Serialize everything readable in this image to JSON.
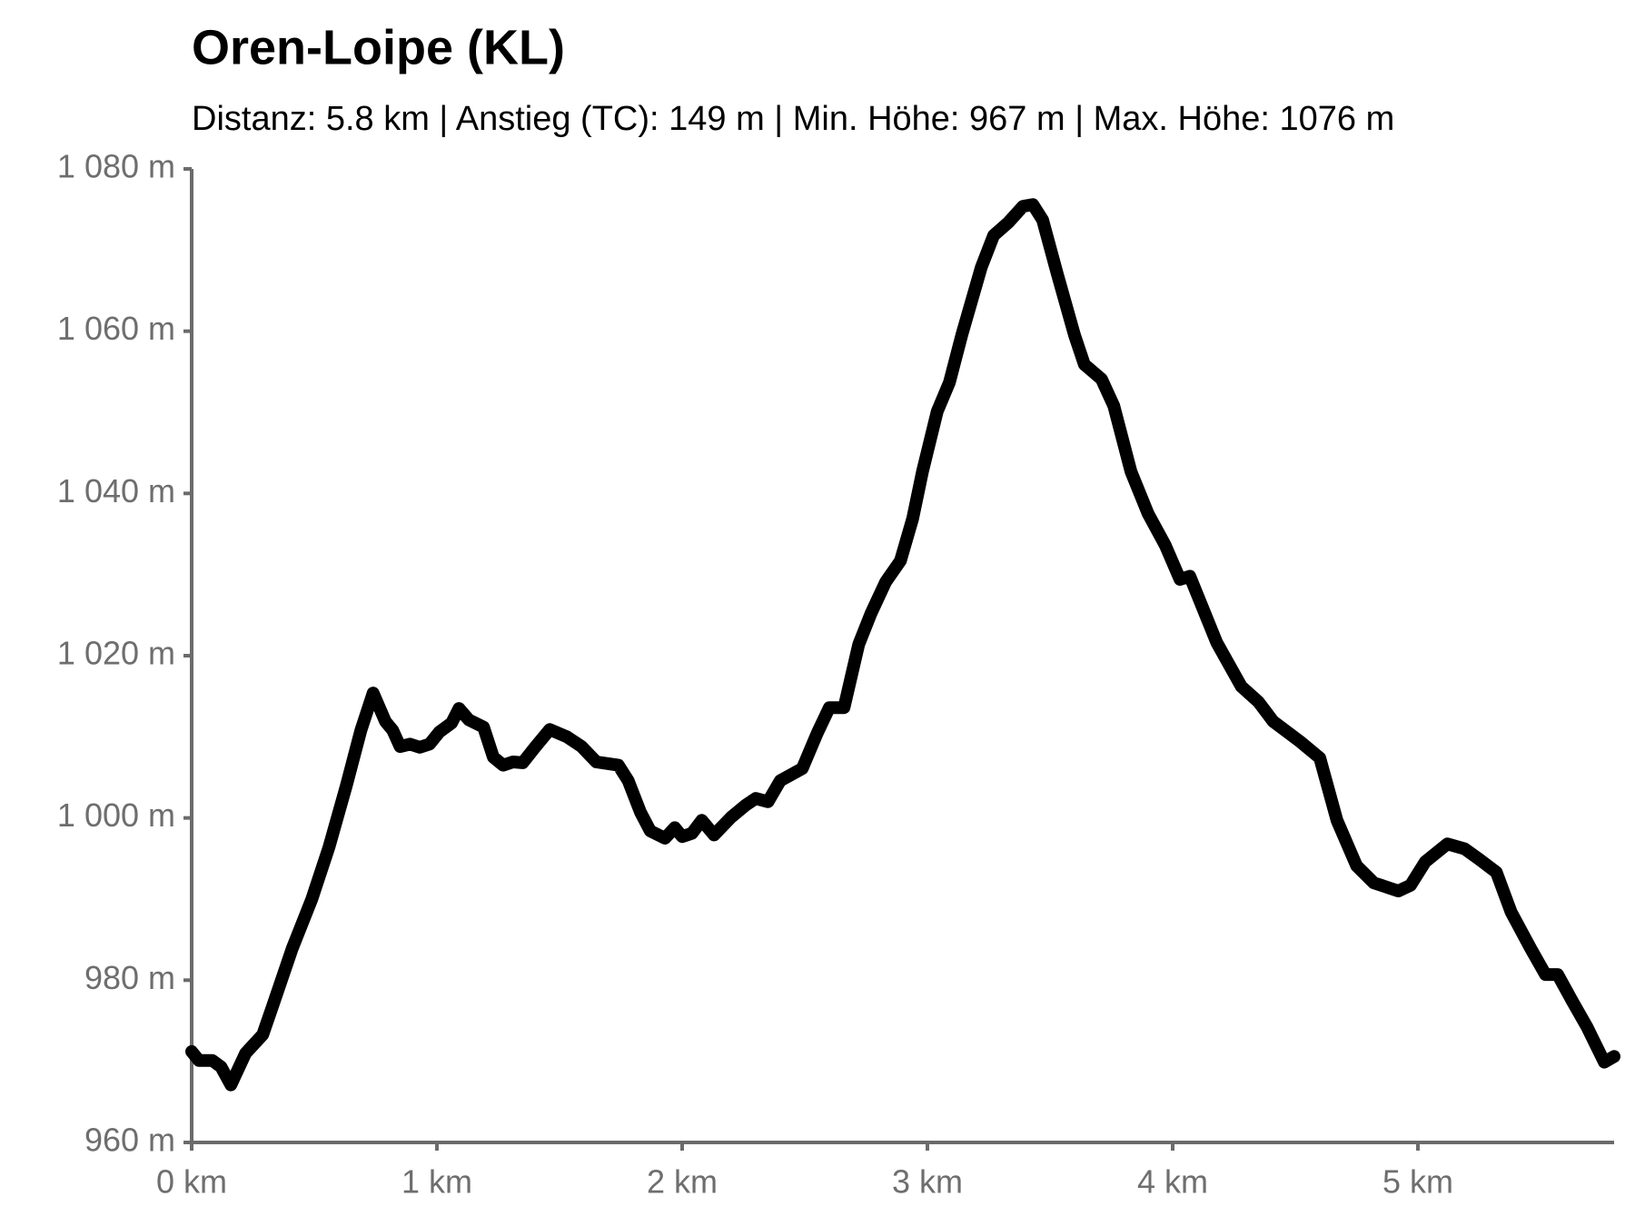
{
  "chart_data": {
    "type": "line",
    "title": "Oren-Loipe (KL)",
    "subtitle": "Distanz: 5.8 km | Anstieg (TC): 149 m | Min. Höhe: 967 m | Max. Höhe: 1076 m",
    "x": [
      0,
      0.03,
      0.085,
      0.12,
      0.16,
      0.22,
      0.29,
      0.33,
      0.41,
      0.49,
      0.56,
      0.63,
      0.69,
      0.74,
      0.79,
      0.82,
      0.85,
      0.89,
      0.93,
      0.97,
      1.01,
      1.06,
      1.09,
      1.13,
      1.19,
      1.23,
      1.27,
      1.31,
      1.35,
      1.4,
      1.46,
      1.53,
      1.59,
      1.65,
      1.74,
      1.78,
      1.83,
      1.87,
      1.93,
      1.97,
      2.0,
      2.04,
      2.08,
      2.13,
      2.2,
      2.26,
      2.3,
      2.35,
      2.4,
      2.49,
      2.55,
      2.6,
      2.66,
      2.72,
      2.77,
      2.83,
      2.89,
      2.94,
      2.98,
      3.04,
      3.09,
      3.14,
      3.22,
      3.27,
      3.33,
      3.39,
      3.43,
      3.47,
      3.53,
      3.6,
      3.64,
      3.71,
      3.76,
      3.83,
      3.9,
      3.97,
      4.03,
      4.07,
      4.18,
      4.28,
      4.35,
      4.41,
      4.52,
      4.6,
      4.67,
      4.75,
      4.82,
      4.92,
      4.97,
      5.03,
      5.12,
      5.19,
      5.25,
      5.32,
      5.38,
      5.46,
      5.52,
      5.57,
      5.63,
      5.69,
      5.76,
      5.8
    ],
    "values": [
      971.2,
      970.1,
      970.1,
      969.3,
      967.1,
      971,
      973.3,
      976.8,
      983.9,
      990,
      996.4,
      1003.9,
      1010.8,
      1015.4,
      1011.9,
      1010.8,
      1008.8,
      1009.1,
      1008.7,
      1009.1,
      1010.6,
      1011.7,
      1013.5,
      1012.1,
      1011.2,
      1007.5,
      1006.5,
      1006.9,
      1006.8,
      1008.7,
      1010.9,
      1010,
      1008.8,
      1006.9,
      1006.5,
      1004.6,
      1000.7,
      998.4,
      997.5,
      998.8,
      997.7,
      998.1,
      999.7,
      997.9,
      1000.1,
      1001.6,
      1002.4,
      1002,
      1004.6,
      1006.1,
      1010.4,
      1013.6,
      1013.6,
      1021.4,
      1025.2,
      1029.1,
      1031.7,
      1036.9,
      1042.7,
      1050.1,
      1053.7,
      1059.5,
      1067.9,
      1071.8,
      1073.4,
      1075.4,
      1075.6,
      1073.7,
      1067,
      1059.5,
      1055.9,
      1054.1,
      1050.8,
      1042.7,
      1037.5,
      1033.6,
      1029.4,
      1029.8,
      1021.6,
      1016.2,
      1014.3,
      1011.9,
      1009.4,
      1007.4,
      999.7,
      994.1,
      992,
      991,
      991.7,
      994.6,
      996.8,
      996.2,
      994.9,
      993.3,
      988.4,
      983.9,
      980.7,
      980.7,
      977.4,
      974.2,
      969.9,
      970.6
    ],
    "color": "#000000",
    "xlim": [
      0,
      5.8
    ],
    "ylim": [
      960,
      1080
    ],
    "xticks": [
      {
        "value": 0,
        "label": "0 km"
      },
      {
        "value": 1,
        "label": "1 km"
      },
      {
        "value": 2,
        "label": "2 km"
      },
      {
        "value": 3,
        "label": "3 km"
      },
      {
        "value": 4,
        "label": "4 km"
      },
      {
        "value": 5,
        "label": "5 km"
      }
    ],
    "yticks": [
      {
        "value": 960,
        "label": "960 m"
      },
      {
        "value": 980,
        "label": "980 m"
      },
      {
        "value": 1000,
        "label": "1 000 m"
      },
      {
        "value": 1020,
        "label": "1 020 m"
      },
      {
        "value": 1040,
        "label": "1 040 m"
      },
      {
        "value": 1060,
        "label": "1 060 m"
      },
      {
        "value": 1080,
        "label": "1 080 m"
      }
    ]
  }
}
